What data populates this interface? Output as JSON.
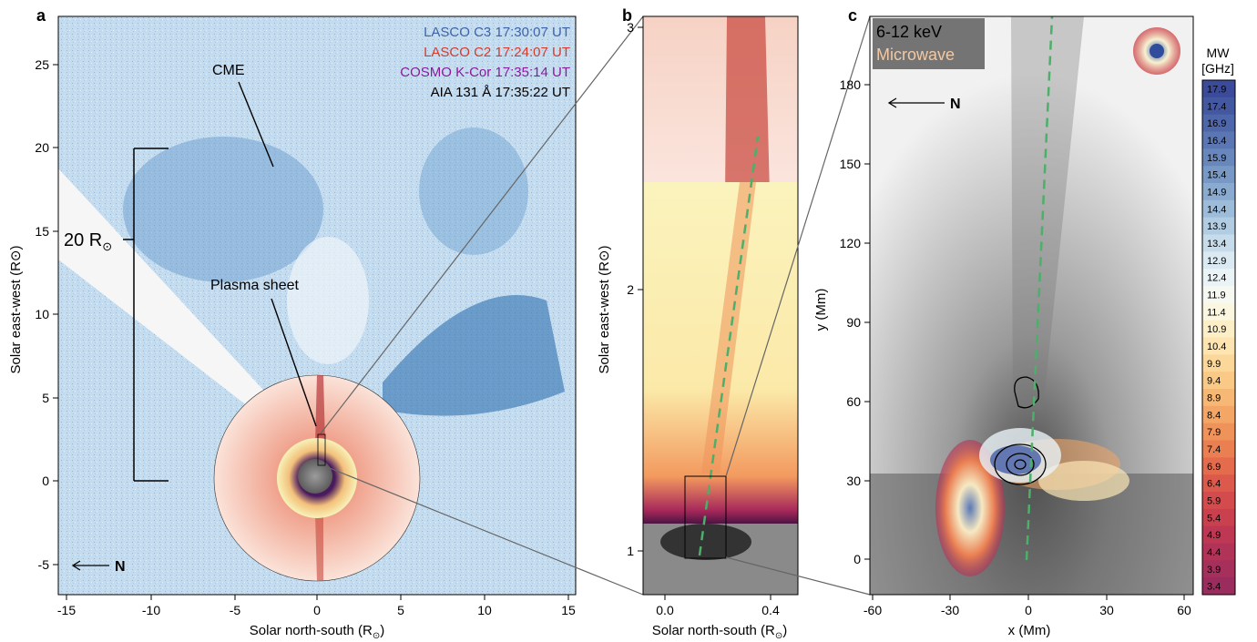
{
  "panels": {
    "a": {
      "letter": "a",
      "legend": [
        {
          "text": "LASCO C3 17:30:07 UT",
          "color": "#3e63a8"
        },
        {
          "text": "LASCO C2 17:24:07 UT",
          "color": "#d43b2a"
        },
        {
          "text": "COSMO K-Cor 17:35:14 UT",
          "color": "#8b1a9c"
        },
        {
          "text": "AIA 131 Å 17:35:22 UT",
          "color": "#000000"
        }
      ],
      "labels": {
        "cme": "CME",
        "plasma_sheet": "Plasma sheet",
        "scale": "20 R",
        "scale_sub": "⊙",
        "north": "N"
      },
      "xlabel": "Solar north-south (R",
      "xlabel_sub": "⊙",
      "xlabel_end": ")",
      "ylabel": "Solar east-west (R⊙)",
      "xticks": [
        "-15",
        "-10",
        "-5",
        "0",
        "5",
        "10",
        "15"
      ],
      "yticks": [
        "-5",
        "0",
        "5",
        "10",
        "15",
        "20",
        "25"
      ]
    },
    "b": {
      "letter": "b",
      "xlabel": "Solar north-south (R",
      "xlabel_sub": "⊙",
      "xlabel_end": ")",
      "ylabel": "Solar east-west (R⊙)",
      "xticks": [
        "0.0",
        "0.4"
      ],
      "yticks": [
        "1",
        "2",
        "3"
      ]
    },
    "c": {
      "letter": "c",
      "legend_line1": "6-12 keV",
      "legend_line2": "Microwave",
      "north": "N",
      "xlabel": "x (Mm)",
      "ylabel": "y (Mm)",
      "xticks": [
        "-60",
        "-30",
        "0",
        "30",
        "60"
      ],
      "yticks": [
        "0",
        "30",
        "60",
        "90",
        "120",
        "150",
        "180"
      ],
      "colorbar_title1": "MW",
      "colorbar_title2": "[GHz]",
      "colorbar": [
        "17.9",
        "17.4",
        "16.9",
        "16.4",
        "15.9",
        "15.4",
        "14.9",
        "14.4",
        "13.9",
        "13.4",
        "12.9",
        "12.4",
        "11.9",
        "11.4",
        "10.9",
        "10.4",
        "9.9",
        "9.4",
        "8.9",
        "8.4",
        "7.9",
        "7.4",
        "6.9",
        "6.4",
        "5.9",
        "5.4",
        "4.9",
        "4.4",
        "3.9",
        "3.4"
      ],
      "colorbar_colors": [
        "#3b4a9a",
        "#4457a1",
        "#4e66aa",
        "#5a76b3",
        "#6887bd",
        "#7898c6",
        "#8aaad0",
        "#9dbcd9",
        "#b2cde2",
        "#c7dceb",
        "#dbe9f2",
        "#eaf3f6",
        "#f6f8f2",
        "#fbf6df",
        "#fcefc8",
        "#fde4b0",
        "#fbd799",
        "#f9c985",
        "#f6b874",
        "#f3a666",
        "#ef935b",
        "#ea7f52",
        "#e46c4d",
        "#dc5a4b",
        "#d34b4c",
        "#c9404f",
        "#be3854",
        "#b23358",
        "#a62f5c",
        "#9b2c5e"
      ]
    }
  }
}
